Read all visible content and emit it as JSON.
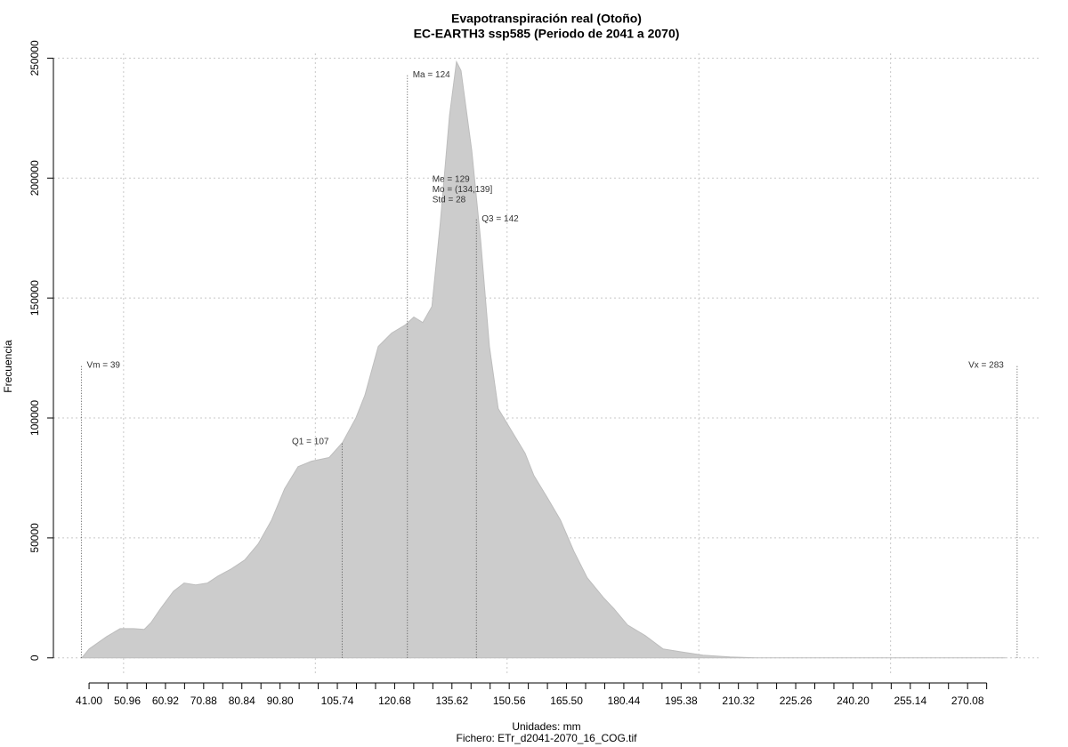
{
  "chart_data": {
    "type": "area",
    "title": "Evapotranspiración real (Otoño)",
    "subtitle": "EC-EARTH3 ssp585 (Periodo de 2041 a 2070)",
    "xlabel": "Unidades: mm",
    "caption": "Fichero: ETr_d2041-2070_16_COG.tif",
    "ylabel": "Frecuencia",
    "color": "#cccccc",
    "x": [
      39.1,
      41,
      45.6,
      49.1,
      52.6,
      55.4,
      57.2,
      59.6,
      63.0,
      65.8,
      68.8,
      71.9,
      74.6,
      78.1,
      81.6,
      85.1,
      88.6,
      92.0,
      95.5,
      99.0,
      103.6,
      107.1,
      110.6,
      112.9,
      116.4,
      119.9,
      123.4,
      125.7,
      128.0,
      130.4,
      132.6,
      135.0,
      136.8,
      138.0,
      140.8,
      143.1,
      145.4,
      147.7,
      151.2,
      154.7,
      157.0,
      160.5,
      163.9,
      167.4,
      170.9,
      175.1,
      177.9,
      181.4,
      186.0,
      190.7,
      196.5,
      201.1,
      208.1,
      215.0,
      280.0
    ],
    "values": [
      0,
      3700,
      8900,
      12200,
      12200,
      11900,
      14800,
      20400,
      27800,
      31200,
      30400,
      31200,
      34100,
      37100,
      40800,
      47500,
      57500,
      70500,
      79700,
      82000,
      83500,
      89800,
      100100,
      109400,
      129800,
      135400,
      138700,
      142100,
      139800,
      146500,
      181700,
      226200,
      248500,
      244800,
      211400,
      174300,
      129800,
      103900,
      94600,
      85300,
      76000,
      66800,
      57500,
      44500,
      33400,
      25200,
      20400,
      13700,
      9300,
      3700,
      2200,
      1100,
      400,
      0,
      0
    ],
    "xlim": [
      31.7,
      289.3
    ],
    "ylim": [
      -7500,
      252000
    ],
    "xticks": [
      {
        "value": 41,
        "label": "41.00"
      },
      50.96,
      60.92,
      70.88,
      80.84,
      {
        "value": 90.8,
        "label": "90.80"
      },
      105.74,
      120.68,
      135.62,
      150.56,
      {
        "value": 165.5,
        "label": "165.50"
      },
      180.44,
      195.38,
      210.32,
      225.26,
      {
        "value": 240.2,
        "label": "240.20"
      },
      255.14,
      270.08
    ],
    "xminor_ticks": [
      45.98,
      55.94,
      65.9,
      75.86,
      85.82,
      95.78,
      100.76,
      110.72,
      115.7,
      125.66,
      130.64,
      140.6,
      145.58,
      155.54,
      160.52,
      170.48,
      175.46,
      185.42,
      190.4,
      200.36,
      205.34,
      215.3,
      220.28,
      230.24,
      235.22,
      245.18,
      250.16,
      260.12,
      265.1,
      275.06
    ],
    "yticks": [
      0,
      50000,
      100000,
      150000,
      200000,
      250000
    ],
    "xgrid": [
      50,
      100,
      150,
      200,
      250
    ],
    "grid": true,
    "annotations": [
      {
        "label": "Vm = 39",
        "x": 39,
        "y": 122000
      },
      {
        "label": "Q1 = 107",
        "x": 107,
        "y": 90000
      },
      {
        "label": "Ma = 124",
        "x": 124,
        "y": 243000
      },
      {
        "label": "Q3 = 142",
        "x": 142,
        "y": 183000
      },
      {
        "label": "Vx = 283",
        "x": 283,
        "y": 122000
      }
    ],
    "stats_text": [
      "Me = 129",
      "Mo = (134,139]",
      "Std = 28"
    ]
  }
}
